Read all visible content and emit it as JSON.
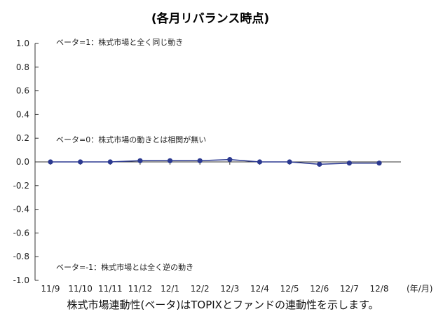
{
  "chart_data": {
    "type": "line",
    "title": "(各月リバランス時点)",
    "categories": [
      "11/9",
      "11/10",
      "11/11",
      "11/12",
      "12/1",
      "12/2",
      "12/3",
      "12/4",
      "12/5",
      "12/6",
      "12/7",
      "12/8"
    ],
    "x_unit": "(年/月)",
    "series": [
      {
        "values": [
          0.0,
          0.0,
          0.0,
          0.01,
          0.01,
          0.01,
          0.02,
          0.0,
          0.0,
          -0.02,
          -0.01,
          -0.01
        ],
        "color": "#2b3990"
      }
    ],
    "ylim": [
      -1.0,
      1.0
    ],
    "yticks": [
      "1.0",
      "0.8",
      "0.6",
      "0.4",
      "0.2",
      "0.0",
      "-0.2",
      "-0.4",
      "-0.6",
      "-0.8",
      "-1.0"
    ],
    "annotations": [
      "ベータ=1：株式市場と全く同じ動き",
      "ベータ=0：株式市場の動きとは相関が無い",
      "ベータ=-1：株式市場とは全く逆の動き"
    ],
    "caption": "株式市場連動性(ベータ)はTOPIXとファンドの連動性を示します。",
    "grid": false,
    "legend": "none"
  }
}
